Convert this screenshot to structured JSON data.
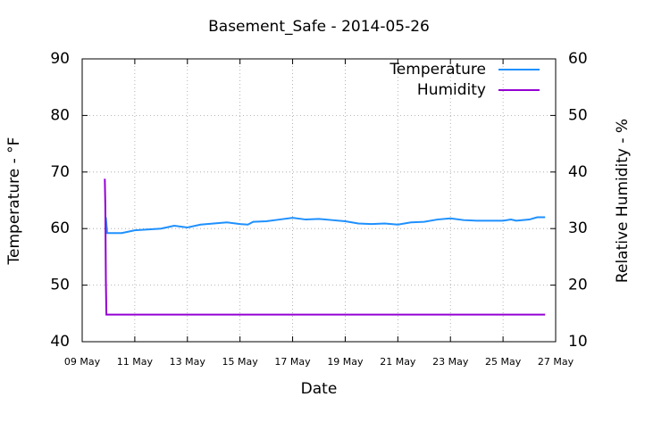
{
  "chart_data": {
    "type": "line",
    "title": "Basement_Safe - 2014-05-26",
    "x_label": "Date",
    "y_label": "Temperature - °F",
    "y2_label": "Relative Humidity - %",
    "xlim": [
      9,
      27
    ],
    "xticks": [
      {
        "value": 9,
        "label": "09 May"
      },
      {
        "value": 11,
        "label": "11 May"
      },
      {
        "value": 13,
        "label": "13 May"
      },
      {
        "value": 15,
        "label": "15 May"
      },
      {
        "value": 17,
        "label": "17 May"
      },
      {
        "value": 19,
        "label": "19 May"
      },
      {
        "value": 21,
        "label": "21 May"
      },
      {
        "value": 23,
        "label": "23 May"
      },
      {
        "value": 25,
        "label": "25 May"
      },
      {
        "value": 27,
        "label": "27 May"
      }
    ],
    "ylim": [
      40,
      90
    ],
    "yticks": [
      40,
      50,
      60,
      70,
      80,
      90
    ],
    "y2lim": [
      10,
      60
    ],
    "y2ticks": [
      10,
      20,
      30,
      40,
      50,
      60
    ],
    "grid": true,
    "legend": "top right",
    "series": [
      {
        "name": "Temperature",
        "color": "#1e90ff",
        "x": [
          9.9,
          9.95,
          10.5,
          11,
          12,
          12.5,
          13,
          13.5,
          14,
          14.5,
          15,
          15.3,
          15.5,
          16,
          16.5,
          17,
          17.5,
          18,
          18.5,
          19,
          19.5,
          20,
          20.5,
          21,
          21.5,
          22,
          22.5,
          23,
          23.5,
          24,
          24.5,
          25,
          25.3,
          25.5,
          26,
          26.3,
          26.6
        ],
        "values": [
          62,
          59.2,
          59.2,
          59.7,
          60.0,
          60.5,
          60.2,
          60.7,
          60.9,
          61.1,
          60.8,
          60.7,
          61.2,
          61.3,
          61.6,
          61.9,
          61.6,
          61.7,
          61.5,
          61.3,
          60.9,
          60.8,
          60.9,
          60.7,
          61.1,
          61.2,
          61.6,
          61.8,
          61.5,
          61.4,
          61.4,
          61.4,
          61.6,
          61.4,
          61.6,
          62.0,
          62.0
        ]
      },
      {
        "name": "Humidity",
        "color": "#9400d3",
        "axis": "y2",
        "x": [
          9.86,
          9.88,
          9.9,
          9.92,
          26.6
        ],
        "values": [
          38.8,
          34,
          21,
          14.8,
          14.8
        ]
      }
    ]
  }
}
